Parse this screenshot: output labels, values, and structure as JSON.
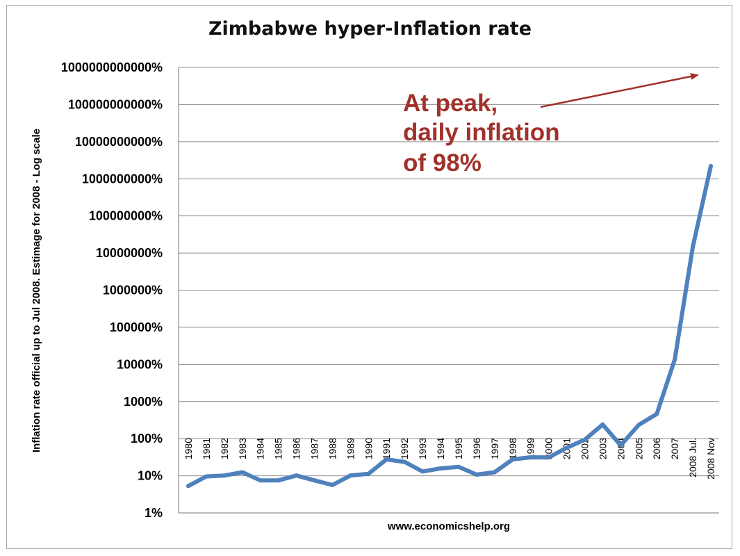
{
  "chart_data": {
    "type": "line",
    "title": "Zimbabwe hyper-Inflation rate",
    "xlabel": "www.economicshelp.org",
    "ylabel": "Inflation rate official up to Jul 2008. Estimage for 2008 - Log scale",
    "yscale": "log",
    "ylim": [
      1,
      100000000000000
    ],
    "yticks": [
      "1%",
      "10%",
      "100%",
      "1000%",
      "10000%",
      "100000%",
      "1000000%",
      "10000000%",
      "100000000%",
      "1000000000%",
      "10000000000%",
      "100000000000%",
      "1000000000000%"
    ],
    "grid": true,
    "legend": "none",
    "series_color": "#4f81bd",
    "categories": [
      "1980",
      "1981",
      "1982",
      "1983",
      "1984",
      "1985",
      "1986",
      "1987",
      "1988",
      "1989",
      "1990",
      "1991",
      "1992",
      "1993",
      "1994",
      "1995",
      "1996",
      "1997",
      "1998",
      "1999",
      "2000",
      "2001",
      "2002",
      "2003",
      "2004",
      "2005",
      "2006",
      "2007",
      "2008 Jul.",
      "2008 Nov"
    ],
    "series": [
      {
        "values": [
          7,
          14,
          15,
          19,
          10.5,
          10.5,
          15,
          10.5,
          7.5,
          15,
          17,
          48,
          40,
          20,
          25,
          28,
          16,
          19,
          48,
          56,
          55,
          112,
          199,
          599,
          133,
          586,
          1281,
          66212,
          231000000,
          79600000000
        ]
      }
    ],
    "annotation": {
      "lines": [
        "At peak,",
        "daily inflation",
        "of 98%"
      ],
      "color": "#a1312b",
      "points_to": "2008 Nov"
    }
  }
}
